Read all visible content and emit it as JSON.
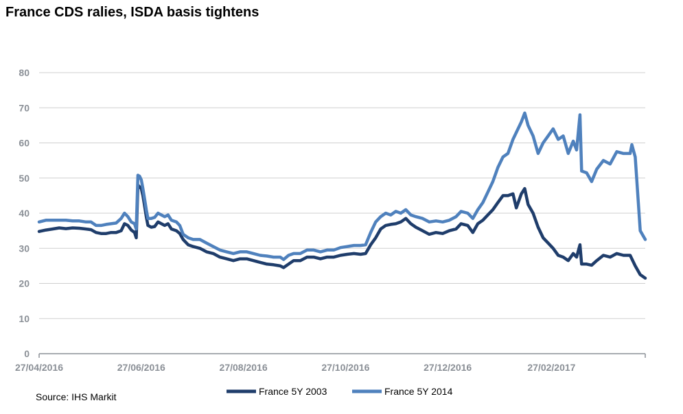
{
  "title": "France CDS ralies, ISDA basis tightens",
  "source": "Source: IHS Markit",
  "chart_data": {
    "type": "line",
    "title": "France CDS ralies, ISDA basis tightens",
    "ylim": [
      0,
      80
    ],
    "yticks": [
      "0",
      "10",
      "20",
      "30",
      "40",
      "50",
      "60",
      "70",
      "80"
    ],
    "xticks": [
      "27/04/2016",
      "27/06/2016",
      "27/08/2016",
      "27/10/2016",
      "27/12/2016",
      "27/02/2017"
    ],
    "grid": "horizontal",
    "legend_position": "bottom",
    "colors": {
      "series_2003": "#1f3d6b",
      "series_2014": "#4f81bd",
      "grid": "#cfcfcf",
      "axis": "#8a8f96"
    },
    "series": [
      {
        "name": "France 5Y 2003",
        "color": "#1f3d6b",
        "points": [
          [
            "2016-04-27",
            34.8
          ],
          [
            "2016-05-01",
            35.2
          ],
          [
            "2016-05-05",
            35.5
          ],
          [
            "2016-05-09",
            35.8
          ],
          [
            "2016-05-13",
            35.6
          ],
          [
            "2016-05-17",
            35.8
          ],
          [
            "2016-05-21",
            35.7
          ],
          [
            "2016-05-25",
            35.5
          ],
          [
            "2016-05-28",
            35.3
          ],
          [
            "2016-05-31",
            34.5
          ],
          [
            "2016-06-03",
            34.2
          ],
          [
            "2016-06-06",
            34.2
          ],
          [
            "2016-06-09",
            34.5
          ],
          [
            "2016-06-12",
            34.5
          ],
          [
            "2016-06-15",
            35.0
          ],
          [
            "2016-06-17",
            37.0
          ],
          [
            "2016-06-19",
            36.5
          ],
          [
            "2016-06-21",
            35.2
          ],
          [
            "2016-06-23",
            34.5
          ],
          [
            "2016-06-24",
            33.0
          ],
          [
            "2016-06-25",
            48.0
          ],
          [
            "2016-06-26",
            47.5
          ],
          [
            "2016-06-27",
            47.0
          ],
          [
            "2016-06-28",
            45.0
          ],
          [
            "2016-06-29",
            42.0
          ],
          [
            "2016-06-30",
            39.0
          ],
          [
            "2016-07-01",
            36.5
          ],
          [
            "2016-07-03",
            36.0
          ],
          [
            "2016-07-05",
            36.2
          ],
          [
            "2016-07-07",
            37.5
          ],
          [
            "2016-07-09",
            37.0
          ],
          [
            "2016-07-11",
            36.5
          ],
          [
            "2016-07-13",
            37.0
          ],
          [
            "2016-07-15",
            35.5
          ],
          [
            "2016-07-18",
            35.0
          ],
          [
            "2016-07-20",
            34.2
          ],
          [
            "2016-07-22",
            32.5
          ],
          [
            "2016-07-25",
            31.0
          ],
          [
            "2016-07-28",
            30.5
          ],
          [
            "2016-08-01",
            30.0
          ],
          [
            "2016-08-05",
            29.0
          ],
          [
            "2016-08-09",
            28.5
          ],
          [
            "2016-08-13",
            27.5
          ],
          [
            "2016-08-17",
            27.0
          ],
          [
            "2016-08-21",
            26.5
          ],
          [
            "2016-08-25",
            27.0
          ],
          [
            "2016-08-29",
            27.0
          ],
          [
            "2016-09-02",
            26.5
          ],
          [
            "2016-09-06",
            26.0
          ],
          [
            "2016-09-10",
            25.5
          ],
          [
            "2016-09-14",
            25.3
          ],
          [
            "2016-09-18",
            25.0
          ],
          [
            "2016-09-20",
            24.5
          ],
          [
            "2016-09-23",
            25.5
          ],
          [
            "2016-09-26",
            26.5
          ],
          [
            "2016-09-30",
            26.5
          ],
          [
            "2016-10-04",
            27.5
          ],
          [
            "2016-10-08",
            27.5
          ],
          [
            "2016-10-12",
            27.0
          ],
          [
            "2016-10-16",
            27.5
          ],
          [
            "2016-10-20",
            27.5
          ],
          [
            "2016-10-24",
            28.0
          ],
          [
            "2016-10-28",
            28.3
          ],
          [
            "2016-11-01",
            28.5
          ],
          [
            "2016-11-05",
            28.3
          ],
          [
            "2016-11-08",
            28.5
          ],
          [
            "2016-11-11",
            31.0
          ],
          [
            "2016-11-14",
            33.0
          ],
          [
            "2016-11-17",
            35.5
          ],
          [
            "2016-11-20",
            36.5
          ],
          [
            "2016-11-23",
            36.8
          ],
          [
            "2016-11-26",
            37.0
          ],
          [
            "2016-11-29",
            37.5
          ],
          [
            "2016-12-02",
            38.5
          ],
          [
            "2016-12-05",
            37.0
          ],
          [
            "2016-12-08",
            36.0
          ],
          [
            "2016-12-12",
            35.0
          ],
          [
            "2016-12-16",
            34.0
          ],
          [
            "2016-12-20",
            34.5
          ],
          [
            "2016-12-24",
            34.2
          ],
          [
            "2016-12-28",
            35.0
          ],
          [
            "2017-01-01",
            35.5
          ],
          [
            "2017-01-04",
            37.0
          ],
          [
            "2017-01-08",
            36.5
          ],
          [
            "2017-01-11",
            34.5
          ],
          [
            "2017-01-14",
            37.0
          ],
          [
            "2017-01-17",
            38.0
          ],
          [
            "2017-01-20",
            39.5
          ],
          [
            "2017-01-23",
            41.0
          ],
          [
            "2017-01-26",
            43.0
          ],
          [
            "2017-01-29",
            45.0
          ],
          [
            "2017-02-01",
            45.0
          ],
          [
            "2017-02-04",
            45.5
          ],
          [
            "2017-02-06",
            41.5
          ],
          [
            "2017-02-09",
            45.5
          ],
          [
            "2017-02-11",
            47.0
          ],
          [
            "2017-02-13",
            42.5
          ],
          [
            "2017-02-16",
            40.0
          ],
          [
            "2017-02-19",
            36.0
          ],
          [
            "2017-02-22",
            33.0
          ],
          [
            "2017-02-25",
            31.5
          ],
          [
            "2017-02-28",
            30.0
          ],
          [
            "2017-03-03",
            28.0
          ],
          [
            "2017-03-06",
            27.5
          ],
          [
            "2017-03-09",
            26.5
          ],
          [
            "2017-03-12",
            28.5
          ],
          [
            "2017-03-14",
            27.5
          ],
          [
            "2017-03-16",
            31.0
          ],
          [
            "2017-03-17",
            25.5
          ],
          [
            "2017-03-20",
            25.5
          ],
          [
            "2017-03-23",
            25.2
          ],
          [
            "2017-03-26",
            26.5
          ],
          [
            "2017-03-30",
            28.0
          ],
          [
            "2017-04-03",
            27.5
          ],
          [
            "2017-04-07",
            28.5
          ],
          [
            "2017-04-11",
            28.0
          ],
          [
            "2017-04-15",
            28.0
          ],
          [
            "2017-04-18",
            25.0
          ],
          [
            "2017-04-21",
            22.5
          ],
          [
            "2017-04-24",
            21.5
          ]
        ]
      },
      {
        "name": "France 5Y 2014",
        "color": "#4f81bd",
        "points": [
          [
            "2016-04-27",
            37.5
          ],
          [
            "2016-05-01",
            38.0
          ],
          [
            "2016-05-05",
            38.0
          ],
          [
            "2016-05-09",
            38.0
          ],
          [
            "2016-05-13",
            38.0
          ],
          [
            "2016-05-17",
            37.8
          ],
          [
            "2016-05-21",
            37.8
          ],
          [
            "2016-05-25",
            37.5
          ],
          [
            "2016-05-28",
            37.5
          ],
          [
            "2016-05-31",
            36.5
          ],
          [
            "2016-06-03",
            36.5
          ],
          [
            "2016-06-06",
            36.8
          ],
          [
            "2016-06-09",
            37.0
          ],
          [
            "2016-06-12",
            37.2
          ],
          [
            "2016-06-15",
            38.5
          ],
          [
            "2016-06-17",
            40.0
          ],
          [
            "2016-06-19",
            39.0
          ],
          [
            "2016-06-21",
            37.5
          ],
          [
            "2016-06-23",
            37.0
          ],
          [
            "2016-06-24",
            35.5
          ],
          [
            "2016-06-25",
            50.8
          ],
          [
            "2016-06-26",
            50.5
          ],
          [
            "2016-06-27",
            49.5
          ],
          [
            "2016-06-28",
            47.0
          ],
          [
            "2016-06-29",
            44.0
          ],
          [
            "2016-06-30",
            41.0
          ],
          [
            "2016-07-01",
            38.5
          ],
          [
            "2016-07-03",
            38.5
          ],
          [
            "2016-07-05",
            38.8
          ],
          [
            "2016-07-07",
            40.0
          ],
          [
            "2016-07-09",
            39.5
          ],
          [
            "2016-07-11",
            39.0
          ],
          [
            "2016-07-13",
            39.5
          ],
          [
            "2016-07-15",
            38.0
          ],
          [
            "2016-07-18",
            37.5
          ],
          [
            "2016-07-20",
            36.5
          ],
          [
            "2016-07-22",
            34.0
          ],
          [
            "2016-07-25",
            33.0
          ],
          [
            "2016-07-28",
            32.5
          ],
          [
            "2016-08-01",
            32.5
          ],
          [
            "2016-08-05",
            31.5
          ],
          [
            "2016-08-09",
            30.5
          ],
          [
            "2016-08-13",
            29.5
          ],
          [
            "2016-08-17",
            29.0
          ],
          [
            "2016-08-21",
            28.5
          ],
          [
            "2016-08-25",
            29.0
          ],
          [
            "2016-08-29",
            29.0
          ],
          [
            "2016-09-02",
            28.5
          ],
          [
            "2016-09-06",
            28.0
          ],
          [
            "2016-09-10",
            27.8
          ],
          [
            "2016-09-14",
            27.5
          ],
          [
            "2016-09-18",
            27.5
          ],
          [
            "2016-09-20",
            26.8
          ],
          [
            "2016-09-23",
            28.0
          ],
          [
            "2016-09-26",
            28.5
          ],
          [
            "2016-09-30",
            28.5
          ],
          [
            "2016-10-04",
            29.5
          ],
          [
            "2016-10-08",
            29.5
          ],
          [
            "2016-10-12",
            29.0
          ],
          [
            "2016-10-16",
            29.5
          ],
          [
            "2016-10-20",
            29.5
          ],
          [
            "2016-10-24",
            30.2
          ],
          [
            "2016-10-28",
            30.5
          ],
          [
            "2016-11-01",
            30.8
          ],
          [
            "2016-11-05",
            30.8
          ],
          [
            "2016-11-08",
            31.0
          ],
          [
            "2016-11-11",
            34.5
          ],
          [
            "2016-11-14",
            37.5
          ],
          [
            "2016-11-17",
            39.0
          ],
          [
            "2016-11-20",
            40.0
          ],
          [
            "2016-11-23",
            39.5
          ],
          [
            "2016-11-26",
            40.5
          ],
          [
            "2016-11-29",
            40.0
          ],
          [
            "2016-12-02",
            41.0
          ],
          [
            "2016-12-05",
            39.5
          ],
          [
            "2016-12-08",
            39.0
          ],
          [
            "2016-12-12",
            38.5
          ],
          [
            "2016-12-16",
            37.5
          ],
          [
            "2016-12-20",
            37.8
          ],
          [
            "2016-12-24",
            37.5
          ],
          [
            "2016-12-28",
            38.0
          ],
          [
            "2017-01-01",
            39.0
          ],
          [
            "2017-01-04",
            40.5
          ],
          [
            "2017-01-08",
            40.0
          ],
          [
            "2017-01-11",
            38.5
          ],
          [
            "2017-01-14",
            41.0
          ],
          [
            "2017-01-17",
            43.0
          ],
          [
            "2017-01-20",
            46.0
          ],
          [
            "2017-01-23",
            49.0
          ],
          [
            "2017-01-26",
            53.0
          ],
          [
            "2017-01-29",
            56.0
          ],
          [
            "2017-02-01",
            57.0
          ],
          [
            "2017-02-04",
            61.0
          ],
          [
            "2017-02-06",
            63.0
          ],
          [
            "2017-02-09",
            66.0
          ],
          [
            "2017-02-11",
            68.5
          ],
          [
            "2017-02-13",
            65.0
          ],
          [
            "2017-02-16",
            62.0
          ],
          [
            "2017-02-19",
            57.0
          ],
          [
            "2017-02-22",
            60.0
          ],
          [
            "2017-02-25",
            62.0
          ],
          [
            "2017-02-28",
            64.0
          ],
          [
            "2017-03-03",
            61.0
          ],
          [
            "2017-03-06",
            62.0
          ],
          [
            "2017-03-09",
            57.0
          ],
          [
            "2017-03-12",
            60.5
          ],
          [
            "2017-03-14",
            58.0
          ],
          [
            "2017-03-16",
            68.0
          ],
          [
            "2017-03-17",
            52.0
          ],
          [
            "2017-03-20",
            51.5
          ],
          [
            "2017-03-23",
            49.0
          ],
          [
            "2017-03-26",
            52.5
          ],
          [
            "2017-03-30",
            55.0
          ],
          [
            "2017-04-03",
            54.0
          ],
          [
            "2017-04-07",
            57.5
          ],
          [
            "2017-04-11",
            57.0
          ],
          [
            "2017-04-15",
            57.0
          ],
          [
            "2017-04-16",
            59.5
          ],
          [
            "2017-04-18",
            56.0
          ],
          [
            "2017-04-21",
            35.0
          ],
          [
            "2017-04-24",
            32.5
          ]
        ]
      }
    ]
  }
}
